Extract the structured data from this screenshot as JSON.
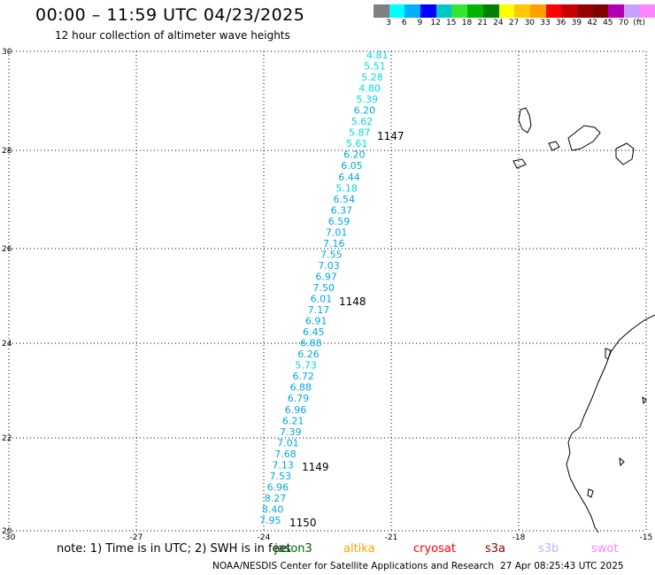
{
  "header": {
    "title": "00:00 – 11:59 UTC 04/23/2025",
    "subtitle": "12 hour collection of altimeter wave heights"
  },
  "legend": {
    "colors": [
      "#808080",
      "#00ffff",
      "#00b0ff",
      "#0000ff",
      "#00c8c8",
      "#32e632",
      "#00b400",
      "#008200",
      "#ffff00",
      "#ffc800",
      "#ffa000",
      "#ff0000",
      "#c80000",
      "#960000",
      "#800000",
      "#b400b4",
      "#c8a0ff",
      "#ff82ff",
      "#000000"
    ],
    "labels": [
      "3",
      "6",
      "9",
      "12",
      "15",
      "18",
      "21",
      "24",
      "27",
      "30",
      "33",
      "36",
      "39",
      "42",
      "45",
      "70",
      "(ft)"
    ]
  },
  "axes": {
    "x_ticks": [
      "-30",
      "-27",
      "-24",
      "-21",
      "-18",
      "-15"
    ],
    "y_ticks": [
      "30",
      "28",
      "26",
      "24",
      "22",
      "20"
    ]
  },
  "wave_heights": [
    "4.81",
    "5.51",
    "5.28",
    "4.80",
    "5.39",
    "6.20",
    "5.62",
    "5.87",
    "5.61",
    "6.20",
    "6.05",
    "6.44",
    "5.18",
    "6.54",
    "6.37",
    "6.59",
    "7.01",
    "7.16",
    "7.55",
    "7.03",
    "6.97",
    "7.50",
    "6.01",
    "7.17",
    "6.91",
    "6.45",
    "6.88",
    "6.26",
    "5.73",
    "6.72",
    "6.88",
    "6.79",
    "6.96",
    "6.21",
    "7.39",
    "7.01",
    "7.68",
    "7.13",
    "7.53",
    "6.96",
    "8.27",
    "8.40",
    "7.95"
  ],
  "pass_labels": [
    "1147",
    "1148",
    "1149",
    "1150"
  ],
  "footer": {
    "note": "note: 1) Time is in UTC; 2) SWH is in feet",
    "missions": [
      {
        "name": "jason3",
        "color": "#006400"
      },
      {
        "name": "altika",
        "color": "#ffa500"
      },
      {
        "name": "cryosat",
        "color": "#ff0000"
      },
      {
        "name": "s3a",
        "color": "#8b0000"
      },
      {
        "name": "s3b",
        "color": "#c8b4f0"
      },
      {
        "name": "swot",
        "color": "#ff82ff"
      }
    ],
    "credit": "NOAA/NESDIS Center for Satellite Applications and Research",
    "timestamp": "27 Apr 08:25:43 UTC 2025"
  }
}
